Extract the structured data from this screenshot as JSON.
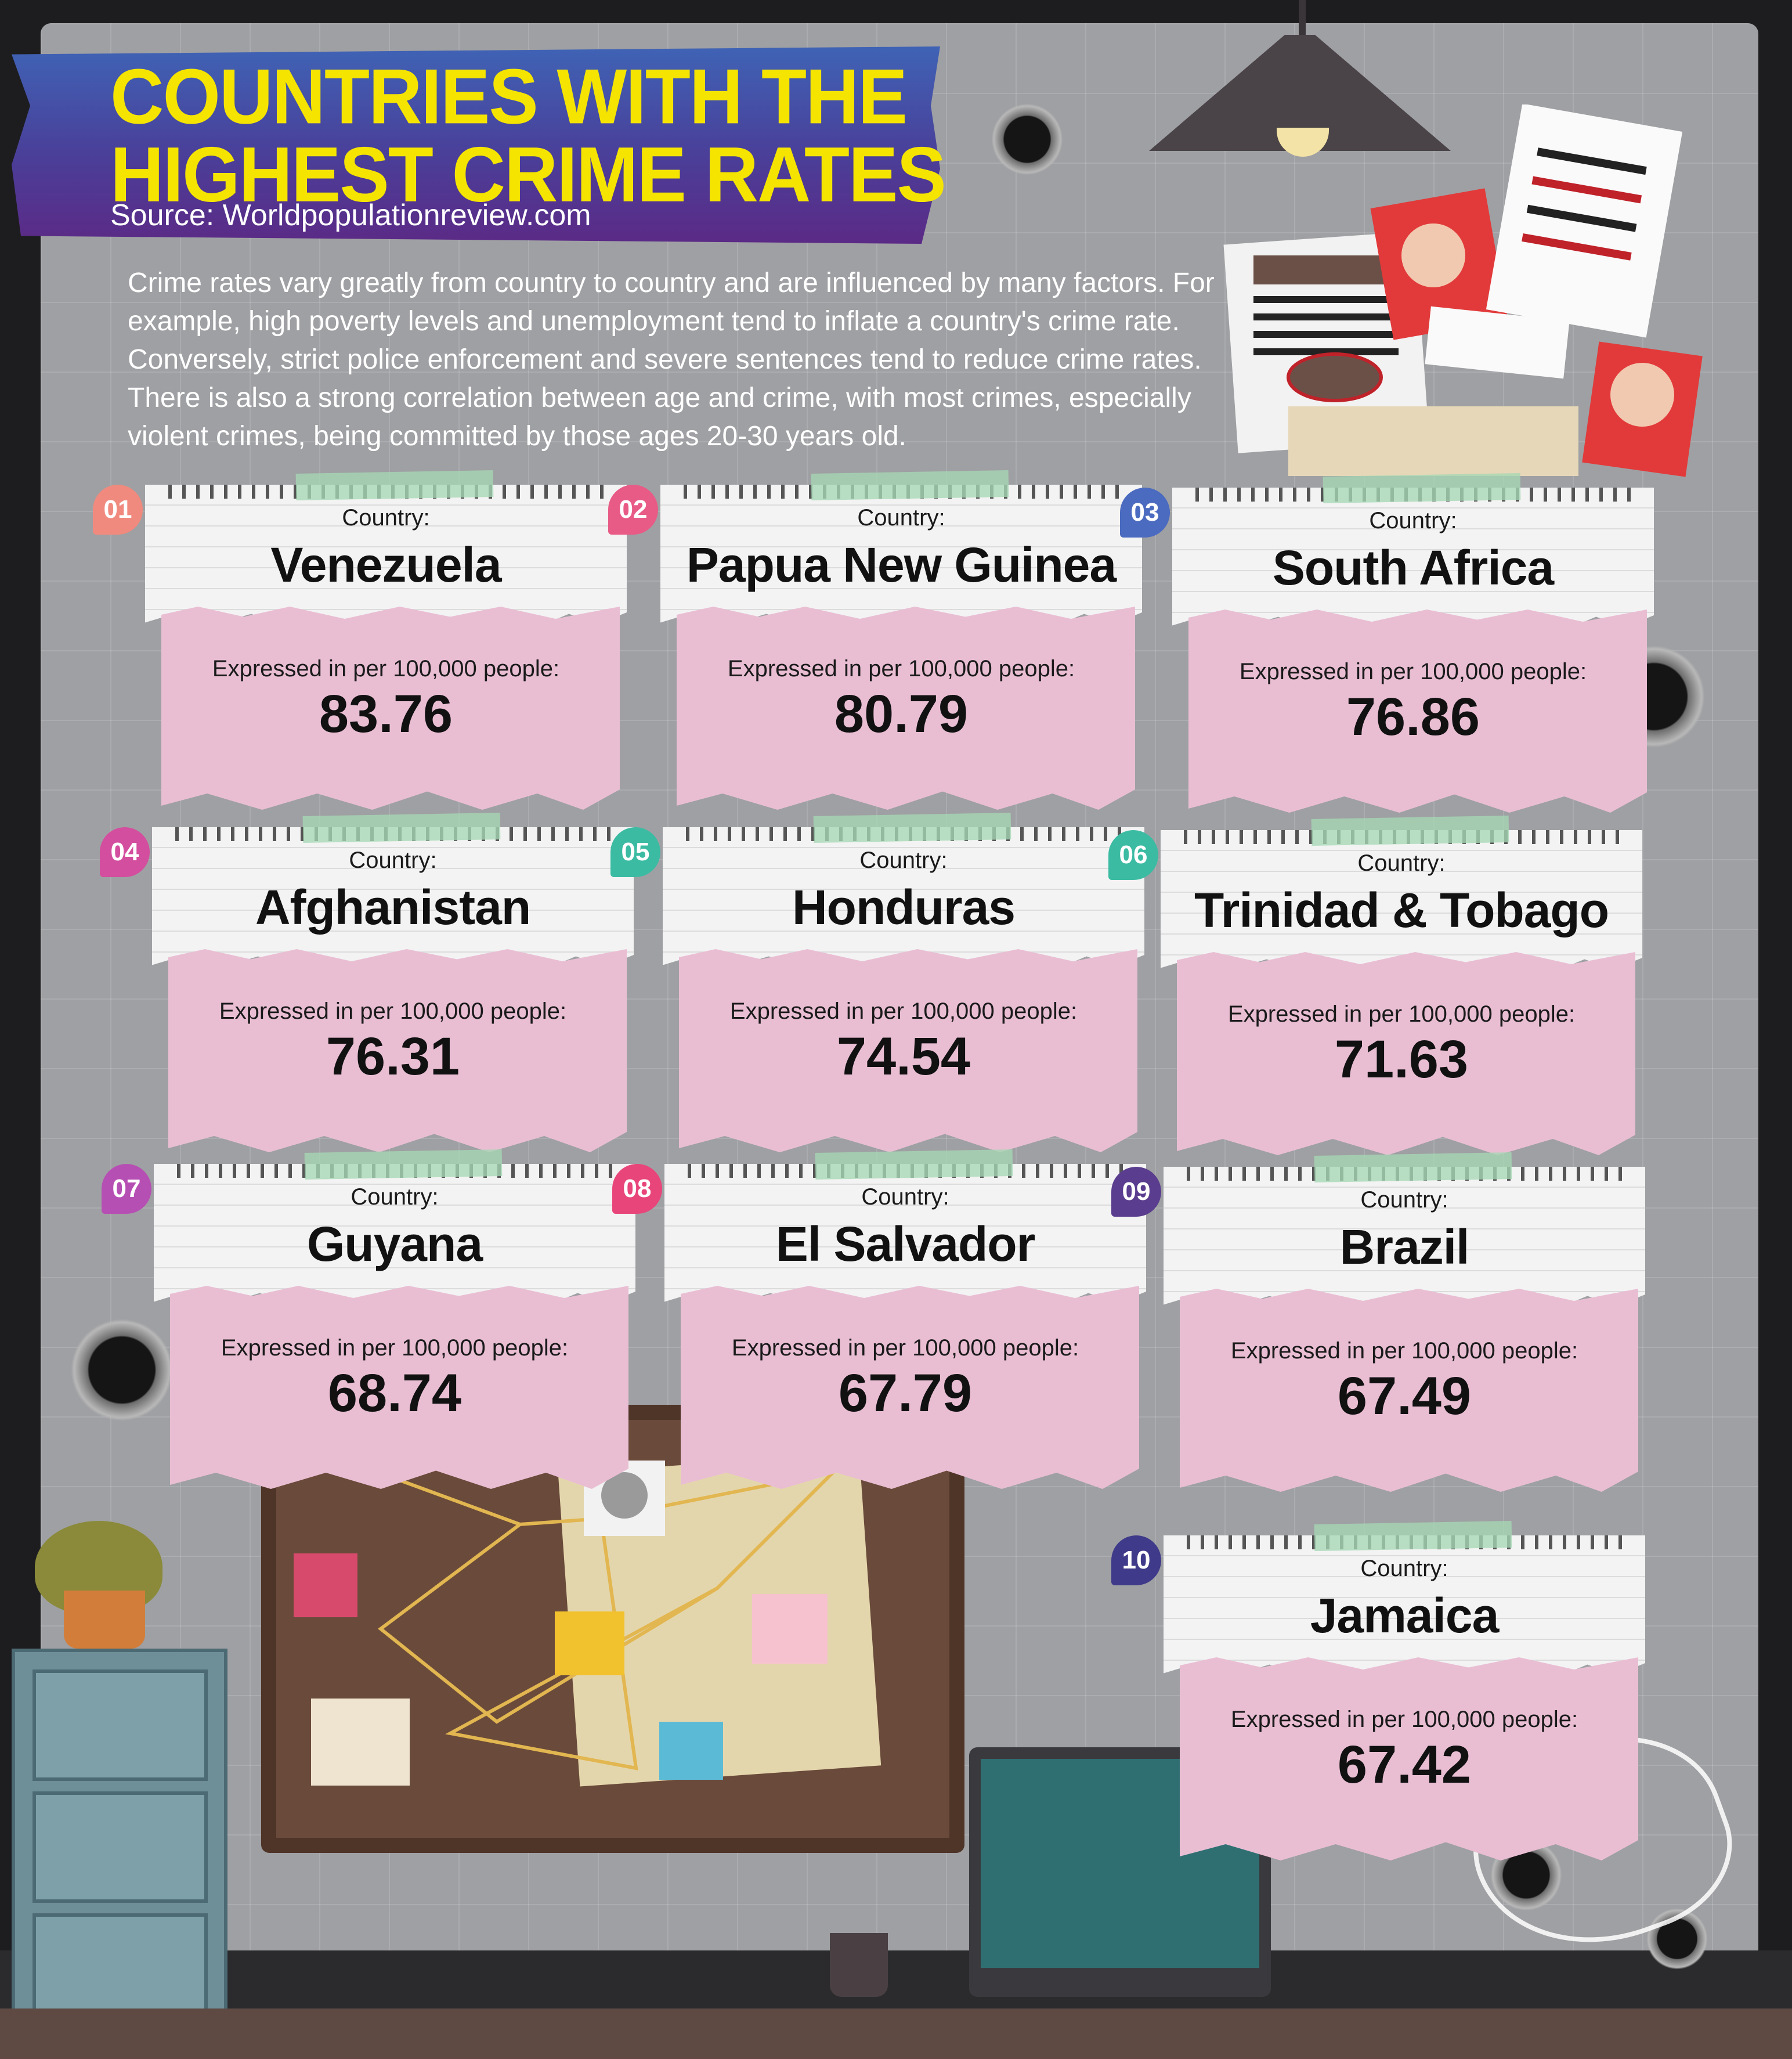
{
  "header": {
    "title_line1": "COUNTRIES WITH THE",
    "title_line2": "HIGHEST CRIME RATES",
    "source": "Source: Worldpopulationreview.com"
  },
  "intro": "Crime rates vary greatly from country to country and are influenced by many factors. For example, high poverty levels and unemployment tend to inflate a country's crime rate. Conversely, strict police enforcement and severe sentences tend to reduce crime rates. There is also a strong correlation between age and crime, with most crimes, especially violent crimes, being committed by those ages 20-30 years old.",
  "cards": [
    {
      "rank": "01",
      "label": "Country:",
      "country": "Venezuela",
      "expressed": "Expressed in per 100,000 people:",
      "value": "83.76",
      "color": "#f08a7e"
    },
    {
      "rank": "02",
      "label": "Country:",
      "country": "Papua New Guinea",
      "expressed": "Expressed in per 100,000 people:",
      "value": "80.79",
      "color": "#e85b86"
    },
    {
      "rank": "03",
      "label": "Country:",
      "country": "South Africa",
      "expressed": "Expressed in per 100,000 people:",
      "value": "76.86",
      "color": "#4b6bc0"
    },
    {
      "rank": "04",
      "label": "Country:",
      "country": "Afghanistan",
      "expressed": "Expressed in per 100,000 people:",
      "value": "76.31",
      "color": "#d34e9e"
    },
    {
      "rank": "05",
      "label": "Country:",
      "country": "Honduras",
      "expressed": "Expressed in per 100,000 people:",
      "value": "74.54",
      "color": "#3cbba3"
    },
    {
      "rank": "06",
      "label": "Country:",
      "country": "Trinidad & Tobago",
      "expressed": "Expressed in per 100,000 people:",
      "value": "71.63",
      "color": "#3cbba3"
    },
    {
      "rank": "07",
      "label": "Country:",
      "country": "Guyana",
      "expressed": "Expressed in per 100,000 people:",
      "value": "68.74",
      "color": "#b64fb4"
    },
    {
      "rank": "08",
      "label": "Country:",
      "country": "El Salvador",
      "expressed": "Expressed in per 100,000 people:",
      "value": "67.79",
      "color": "#e8457a"
    },
    {
      "rank": "09",
      "label": "Country:",
      "country": "Brazil",
      "expressed": "Expressed in per 100,000 people:",
      "value": "67.49",
      "color": "#5a3d8f"
    },
    {
      "rank": "10",
      "label": "Country:",
      "country": "Jamaica",
      "expressed": "Expressed in per 100,000 people:",
      "value": "67.42",
      "color": "#3f3a8a"
    }
  ]
}
